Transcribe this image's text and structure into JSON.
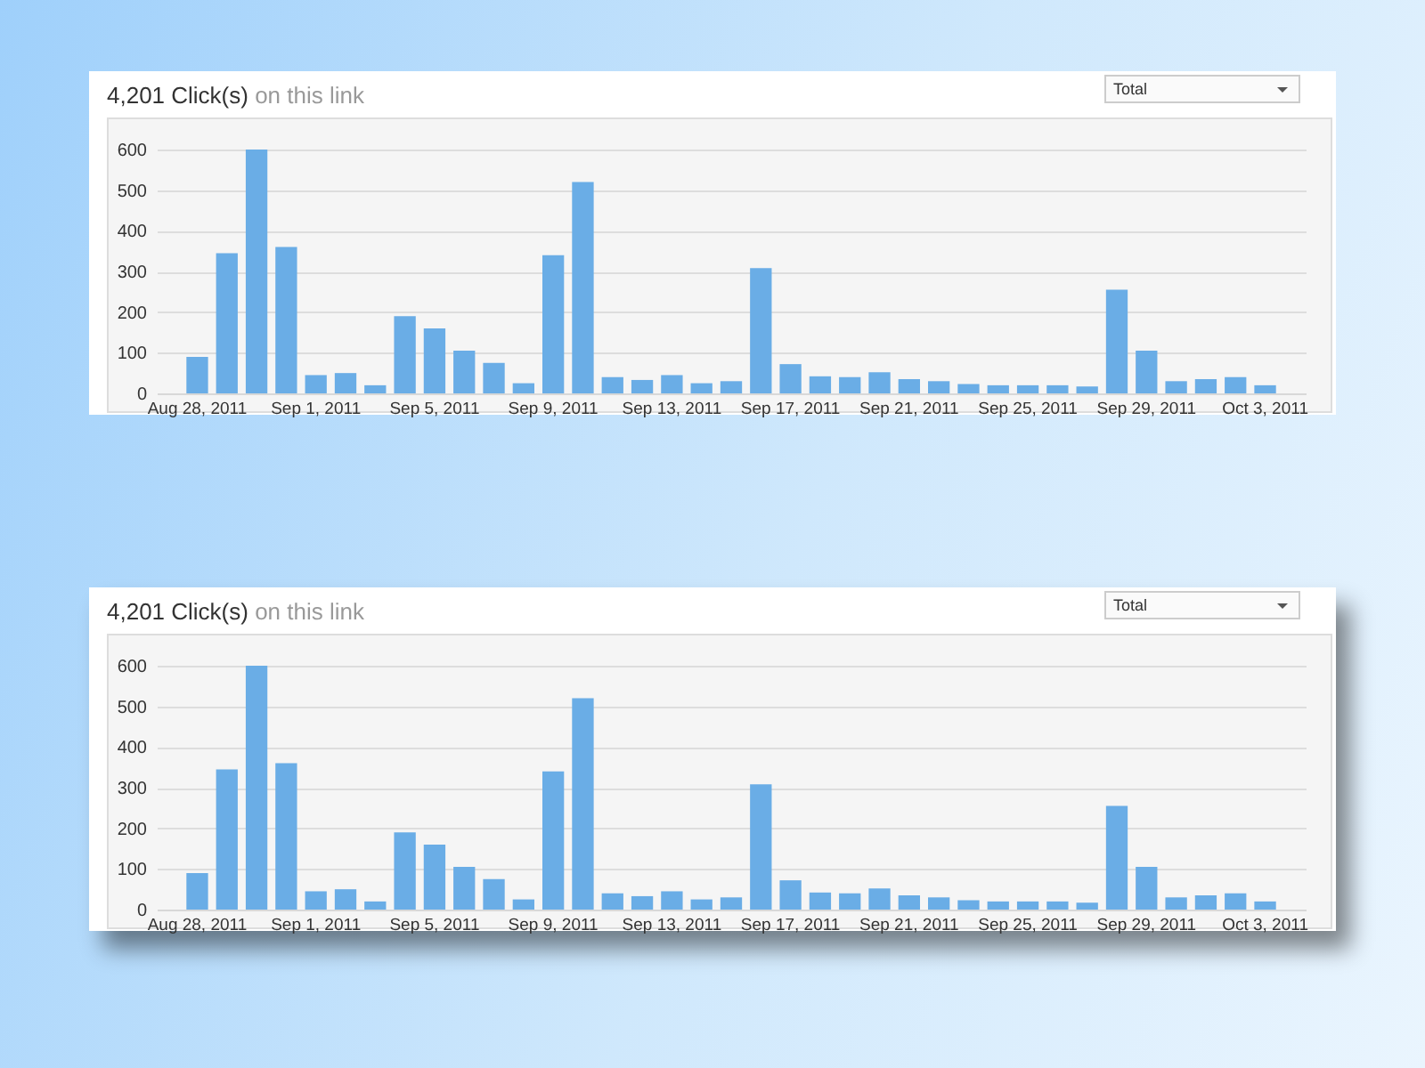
{
  "chart_data": [
    {
      "type": "bar",
      "title": "4,201 Click(s)",
      "subtitle": "on this link",
      "annotations": [
        "Total"
      ],
      "categories": [
        "Aug 28, 2011",
        null,
        null,
        null,
        "Sep 1, 2011",
        null,
        null,
        null,
        "Sep 5, 2011",
        null,
        null,
        null,
        "Sep 9, 2011",
        null,
        null,
        null,
        "Sep 13, 2011",
        null,
        null,
        null,
        "Sep 17, 2011",
        null,
        null,
        null,
        "Sep 21, 2011",
        null,
        null,
        null,
        "Sep 25, 2011",
        null,
        null,
        null,
        "Sep 29, 2011",
        null,
        null,
        null,
        "Oct 3, 2011"
      ],
      "values": [
        90,
        345,
        600,
        360,
        45,
        50,
        20,
        190,
        160,
        105,
        75,
        25,
        340,
        520,
        40,
        33,
        45,
        25,
        30,
        308,
        72,
        42,
        40,
        52,
        35,
        30,
        23,
        20,
        20,
        20,
        17,
        255,
        105,
        30,
        35,
        40,
        20
      ],
      "color": "#6aade6",
      "ylim": [
        0,
        600
      ],
      "yticks": [
        0,
        100,
        200,
        300,
        400,
        500,
        600
      ],
      "grid": "y"
    },
    {
      "type": "bar",
      "title": "4,201 Click(s)",
      "subtitle": "on this link",
      "annotations": [
        "Total"
      ],
      "categories": [
        "Aug 28, 2011",
        null,
        null,
        null,
        "Sep 1, 2011",
        null,
        null,
        null,
        "Sep 5, 2011",
        null,
        null,
        null,
        "Sep 9, 2011",
        null,
        null,
        null,
        "Sep 13, 2011",
        null,
        null,
        null,
        "Sep 17, 2011",
        null,
        null,
        null,
        "Sep 21, 2011",
        null,
        null,
        null,
        "Sep 25, 2011",
        null,
        null,
        null,
        "Sep 29, 2011",
        null,
        null,
        null,
        "Oct 3, 2011"
      ],
      "values": [
        90,
        345,
        600,
        360,
        45,
        50,
        20,
        190,
        160,
        105,
        75,
        25,
        340,
        520,
        40,
        33,
        45,
        25,
        30,
        308,
        72,
        42,
        40,
        52,
        35,
        30,
        23,
        20,
        20,
        20,
        17,
        255,
        105,
        30,
        35,
        40,
        20
      ],
      "color": "#6aade6",
      "ylim": [
        0,
        600
      ],
      "yticks": [
        0,
        100,
        200,
        300,
        400,
        500,
        600
      ],
      "grid": "y"
    }
  ]
}
